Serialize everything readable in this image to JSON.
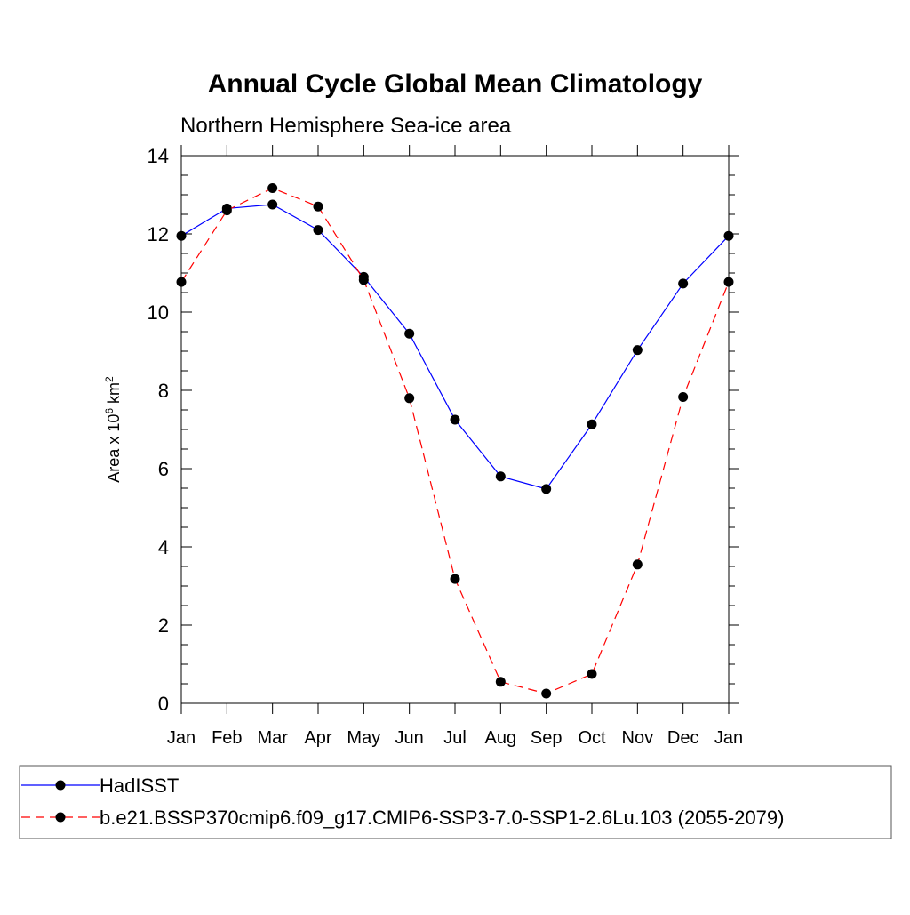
{
  "chart_data": {
    "type": "line",
    "title": "Annual Cycle Global Mean Climatology",
    "subtitle": "Northern Hemisphere Sea-ice area",
    "ylabel_prefix": "Area x 10",
    "ylabel_exp1": "6",
    "ylabel_mid": " km",
    "ylabel_exp2": "2",
    "xlabel": "",
    "categories": [
      "Jan",
      "Feb",
      "Mar",
      "Apr",
      "May",
      "Jun",
      "Jul",
      "Aug",
      "Sep",
      "Oct",
      "Nov",
      "Dec",
      "Jan"
    ],
    "ylim": [
      0,
      14
    ],
    "yticks": [
      0,
      2,
      4,
      6,
      8,
      10,
      12,
      14
    ],
    "series": [
      {
        "name": "HadISST",
        "color": "#0000ff",
        "style": "solid",
        "values": [
          11.95,
          12.65,
          12.75,
          12.1,
          10.9,
          9.45,
          7.25,
          5.8,
          5.48,
          7.13,
          9.03,
          10.73,
          11.95
        ]
      },
      {
        "name": "b.e21.BSSP370cmip6.f09_g17.CMIP6-SSP3-7.0-SSP1-2.6Lu.103 (2055-2079)",
        "color": "#ff0000",
        "style": "dashed",
        "values": [
          10.77,
          12.6,
          13.17,
          12.7,
          10.82,
          7.8,
          3.18,
          0.55,
          0.25,
          0.75,
          3.55,
          7.83,
          10.77
        ]
      }
    ],
    "legend_position": "bottom"
  }
}
